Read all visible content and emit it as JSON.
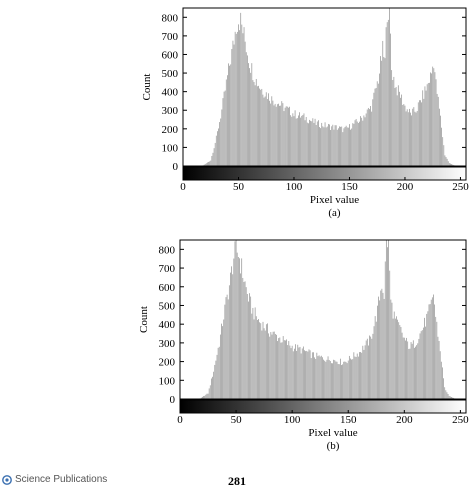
{
  "footer": {
    "publisher": "Science Publications",
    "page_number": "281"
  },
  "chart_data": [
    {
      "type": "bar",
      "caption": "(a)",
      "xlabel": "Pixel value",
      "ylabel": "Count",
      "xlim": [
        0,
        255
      ],
      "ylim": [
        0,
        850
      ],
      "xticks": [
        0,
        50,
        100,
        150,
        200,
        250
      ],
      "yticks": [
        0,
        100,
        200,
        300,
        400,
        500,
        600,
        700,
        800
      ],
      "colorbar": "grayscale 0 to 255",
      "bar_color": "#9a9a9a",
      "anchors": [
        [
          10,
          0
        ],
        [
          18,
          3
        ],
        [
          25,
          30
        ],
        [
          30,
          150
        ],
        [
          35,
          300
        ],
        [
          40,
          480
        ],
        [
          45,
          640
        ],
        [
          48,
          760
        ],
        [
          50,
          790
        ],
        [
          52,
          780
        ],
        [
          55,
          700
        ],
        [
          60,
          560
        ],
        [
          65,
          470
        ],
        [
          70,
          420
        ],
        [
          80,
          360
        ],
        [
          90,
          320
        ],
        [
          100,
          280
        ],
        [
          110,
          260
        ],
        [
          120,
          230
        ],
        [
          130,
          215
        ],
        [
          140,
          205
        ],
        [
          145,
          195
        ],
        [
          150,
          210
        ],
        [
          160,
          250
        ],
        [
          170,
          320
        ],
        [
          176,
          470
        ],
        [
          180,
          620
        ],
        [
          182,
          560
        ],
        [
          184,
          850
        ],
        [
          186,
          850
        ],
        [
          188,
          520
        ],
        [
          192,
          420
        ],
        [
          196,
          380
        ],
        [
          200,
          320
        ],
        [
          205,
          280
        ],
        [
          210,
          300
        ],
        [
          215,
          360
        ],
        [
          220,
          430
        ],
        [
          224,
          500
        ],
        [
          226,
          570
        ],
        [
          228,
          440
        ],
        [
          232,
          260
        ],
        [
          236,
          60
        ],
        [
          240,
          15
        ],
        [
          245,
          3
        ],
        [
          250,
          0
        ]
      ]
    },
    {
      "type": "bar",
      "caption": "(b)",
      "xlabel": "Pixel value",
      "ylabel": "Count",
      "xlim": [
        0,
        255
      ],
      "ylim": [
        0,
        850
      ],
      "xticks": [
        0,
        50,
        100,
        150,
        200,
        250
      ],
      "yticks": [
        0,
        100,
        200,
        300,
        400,
        500,
        600,
        700,
        800
      ],
      "colorbar": "grayscale 0 to 255",
      "bar_color": "#9a9a9a",
      "anchors": [
        [
          10,
          0
        ],
        [
          18,
          3
        ],
        [
          25,
          30
        ],
        [
          30,
          150
        ],
        [
          35,
          300
        ],
        [
          40,
          480
        ],
        [
          45,
          640
        ],
        [
          48,
          760
        ],
        [
          50,
          790
        ],
        [
          52,
          780
        ],
        [
          55,
          700
        ],
        [
          60,
          560
        ],
        [
          65,
          470
        ],
        [
          70,
          420
        ],
        [
          80,
          360
        ],
        [
          90,
          320
        ],
        [
          100,
          280
        ],
        [
          110,
          260
        ],
        [
          120,
          230
        ],
        [
          130,
          215
        ],
        [
          140,
          205
        ],
        [
          145,
          195
        ],
        [
          150,
          210
        ],
        [
          160,
          250
        ],
        [
          170,
          320
        ],
        [
          176,
          470
        ],
        [
          180,
          620
        ],
        [
          182,
          560
        ],
        [
          184,
          850
        ],
        [
          186,
          850
        ],
        [
          188,
          520
        ],
        [
          192,
          420
        ],
        [
          196,
          380
        ],
        [
          200,
          320
        ],
        [
          205,
          280
        ],
        [
          210,
          300
        ],
        [
          215,
          360
        ],
        [
          220,
          430
        ],
        [
          224,
          500
        ],
        [
          226,
          570
        ],
        [
          228,
          440
        ],
        [
          232,
          260
        ],
        [
          236,
          60
        ],
        [
          240,
          15
        ],
        [
          245,
          3
        ],
        [
          250,
          0
        ]
      ]
    }
  ]
}
